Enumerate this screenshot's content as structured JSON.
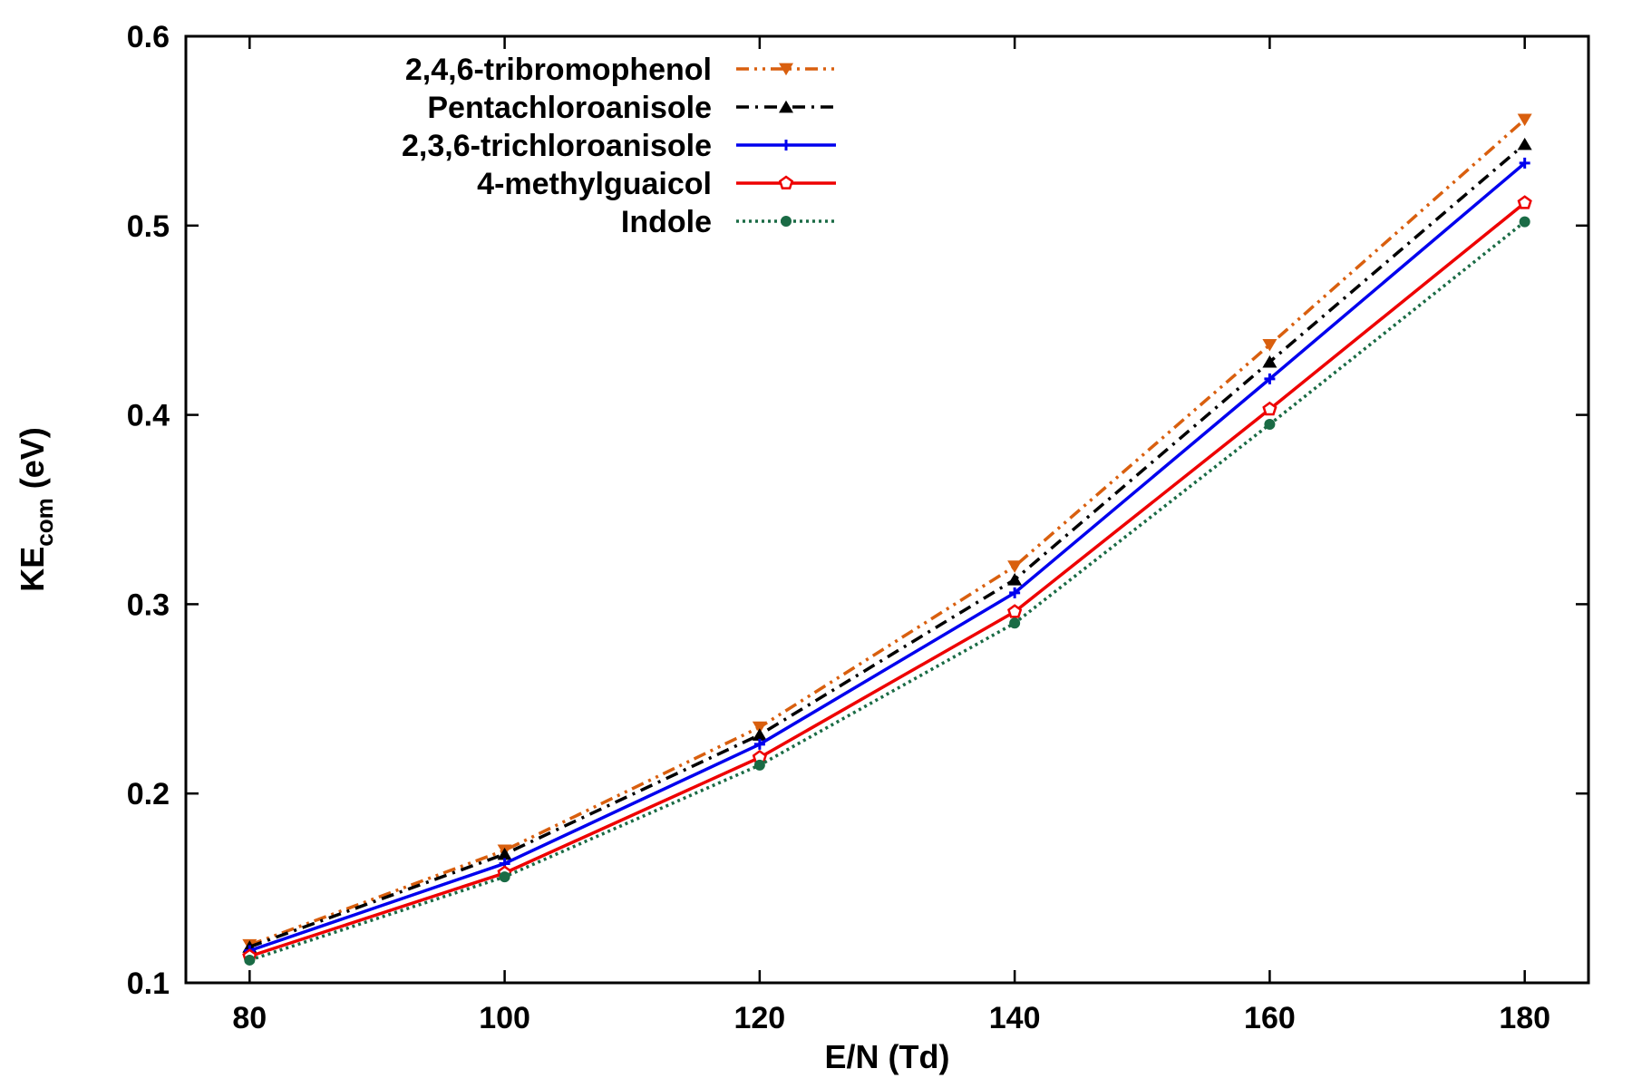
{
  "chart_data": {
    "type": "line",
    "xlabel": "E/N (Td)",
    "ylabel": {
      "main": "KE",
      "sub": "com",
      "unit": " (eV)"
    },
    "xlim": [
      75,
      185
    ],
    "ylim": [
      0.1,
      0.6
    ],
    "xticks": [
      80,
      100,
      120,
      140,
      160,
      180
    ],
    "yticks": [
      0.1,
      0.2,
      0.3,
      0.4,
      0.5,
      0.6
    ],
    "ytick_labels": [
      "0.1",
      "0.2",
      "0.3",
      "0.4",
      "0.5",
      "0.6"
    ],
    "legend_position": "top-left",
    "grid": false,
    "x": [
      80,
      100,
      120,
      140,
      160,
      180
    ],
    "series": [
      {
        "name": "2,4,6-tribromophenol",
        "values": [
          0.12,
          0.17,
          0.235,
          0.32,
          0.437,
          0.556
        ],
        "color": "#d95f0e",
        "dash": "14,6,3,6,3,6",
        "marker": "triangle-down"
      },
      {
        "name": "Pentachloroanisole",
        "values": [
          0.119,
          0.168,
          0.231,
          0.313,
          0.428,
          0.543
        ],
        "color": "#000000",
        "dash": "14,7,3,7",
        "marker": "triangle-up"
      },
      {
        "name": "2,3,6-trichloroanisole",
        "values": [
          0.117,
          0.163,
          0.226,
          0.306,
          0.419,
          0.533
        ],
        "color": "#0000ee",
        "dash": "",
        "marker": "plus"
      },
      {
        "name": "4-methylguaicol",
        "values": [
          0.114,
          0.158,
          0.219,
          0.296,
          0.403,
          0.512
        ],
        "color": "#ee0000",
        "dash": "",
        "marker": "pentagon"
      },
      {
        "name": "Indole",
        "values": [
          0.112,
          0.156,
          0.215,
          0.29,
          0.395,
          0.502
        ],
        "color": "#1a6b45",
        "dash": "3,4",
        "marker": "circle"
      }
    ]
  }
}
